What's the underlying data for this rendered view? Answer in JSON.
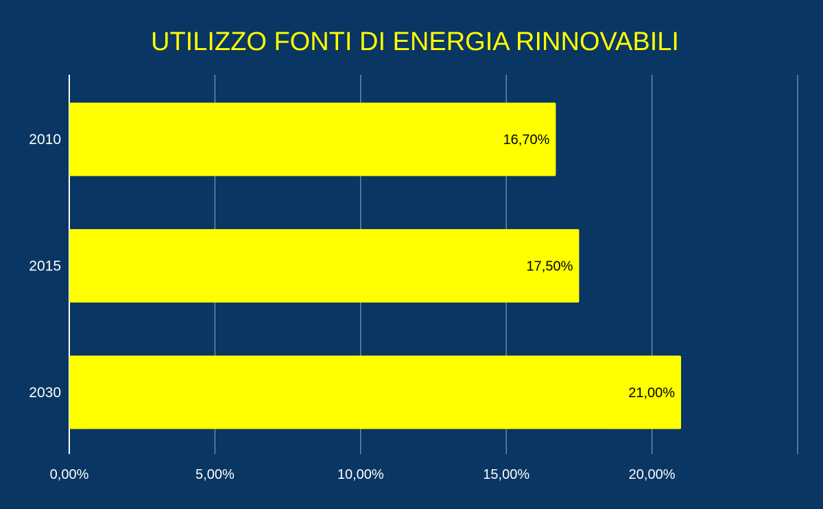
{
  "colors": {
    "background": "#0a3663",
    "bar": "#ffff00",
    "title": "#ffff00",
    "text": "#ffffff",
    "value_label": "#000000",
    "grid": "#7f93ad"
  },
  "chart_data": {
    "type": "bar",
    "orientation": "horizontal",
    "title": "UTILIZZO FONTI DI ENERGIA RINNOVABILI",
    "categories": [
      "2010",
      "2015",
      "2030"
    ],
    "values": [
      16.7,
      17.5,
      21.0
    ],
    "value_labels": [
      "16,70%",
      "17,50%",
      "21,00%"
    ],
    "x_ticks": [
      0,
      5,
      10,
      15,
      20,
      25
    ],
    "x_tick_labels": [
      "0,00%",
      "5,00%",
      "10,00%",
      "15,00%",
      "20,00%",
      ""
    ],
    "xlim": [
      0,
      25
    ],
    "grid": true,
    "legend": "none"
  }
}
